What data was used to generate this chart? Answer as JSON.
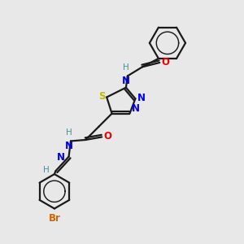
{
  "bg_color": "#e8e8e8",
  "bond_color": "#1a1a1a",
  "N_color": "#0000ee",
  "O_color": "#ee0000",
  "S_color": "#bbbb00",
  "Br_color": "#cc6600",
  "H_color": "#4a9090",
  "lw": 1.6,
  "lw_thin": 1.2,
  "fs": 8.5,
  "fs_small": 7.5,
  "xlim": [
    0,
    10
  ],
  "ylim": [
    0,
    10
  ]
}
